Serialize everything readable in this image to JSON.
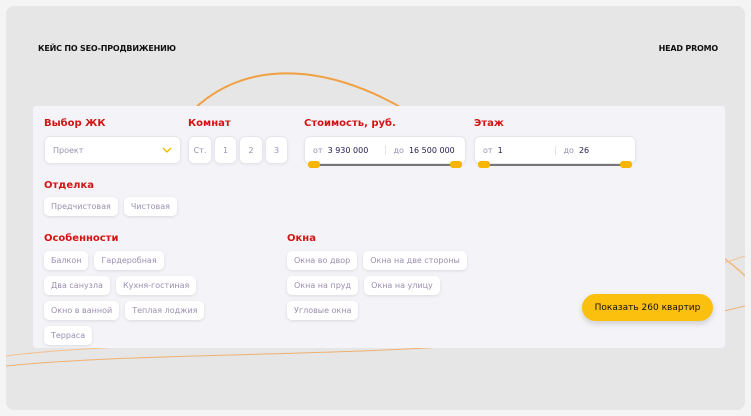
{
  "header": {
    "left": "КЕЙС ПО SEO-ПРОДВИЖЕНИЮ",
    "right": "HEAD PROMO"
  },
  "colors": {
    "accent": "#fbbf0e",
    "label": "#d41414",
    "curve": "#f0a040"
  },
  "filters": {
    "complex": {
      "label": "Выбор ЖК",
      "placeholder": "Проект",
      "icon": "chevron-down-icon"
    },
    "rooms": {
      "label": "Комнат",
      "options": [
        "Ст.",
        "1",
        "2",
        "3"
      ]
    },
    "price": {
      "label": "Стоимость, руб.",
      "from_prefix": "от",
      "from": "3 930 000",
      "to_prefix": "до",
      "to": "16 500 000"
    },
    "floor": {
      "label": "Этаж",
      "from_prefix": "от",
      "from": "1",
      "to_prefix": "до",
      "to": "26"
    },
    "finish": {
      "label": "Отделка",
      "options": [
        "Предчистовая",
        "Чистовая"
      ]
    },
    "features": {
      "label": "Особенности",
      "options": [
        "Балкон",
        "Гардеробная",
        "Два санузла",
        "Кухня-гостиная",
        "Окно в ванной",
        "Теплая лоджия",
        "Терраса"
      ]
    },
    "windows": {
      "label": "Окна",
      "options": [
        "Окна во двор",
        "Окна на две стороны",
        "Окна на пруд",
        "Окна на улицу",
        "Угловые окна"
      ]
    }
  },
  "submit": {
    "label": "Показать 260 квартир"
  }
}
